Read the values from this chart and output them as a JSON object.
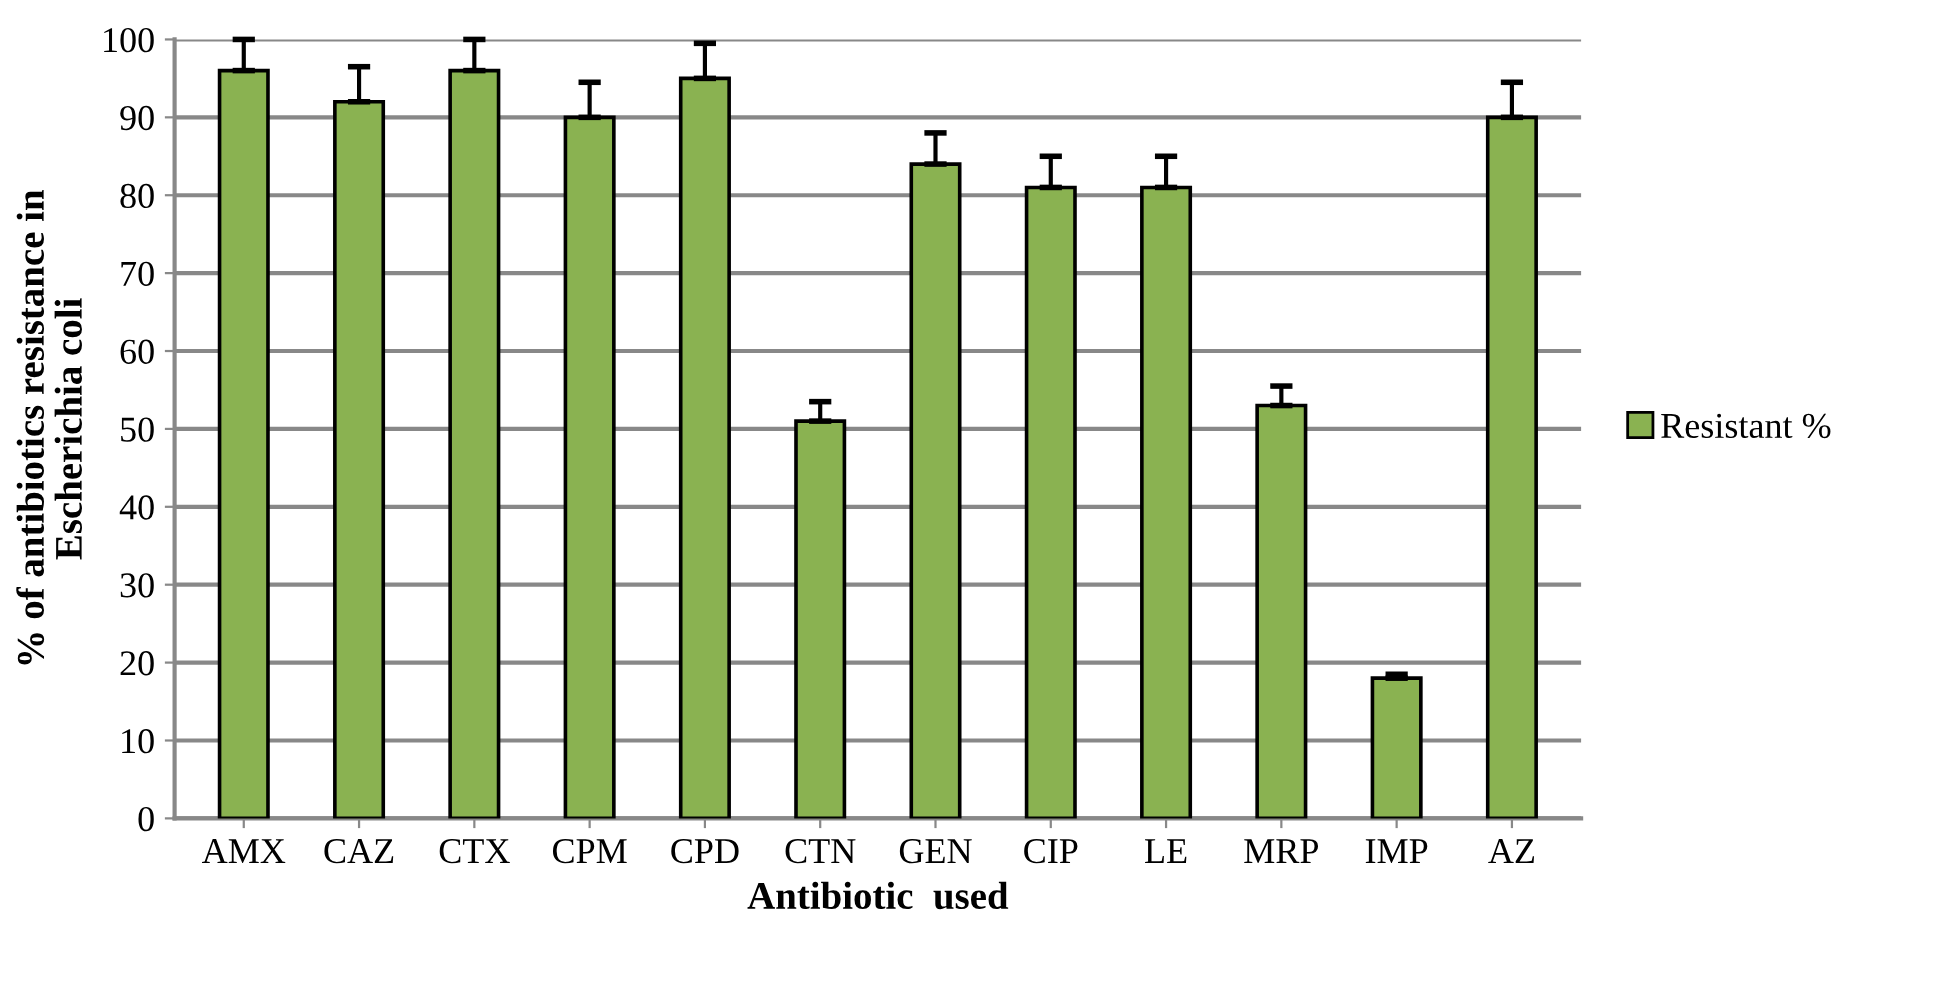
{
  "chart_data": {
    "type": "bar",
    "xlabel": "Antibiotic  used",
    "ylabel": "% of antibiotics resistance in\nEscherichia coli",
    "categories": [
      "AMX",
      "CAZ",
      "CTX",
      "CPM",
      "CPD",
      "CTN",
      "GEN",
      "CIP",
      "LE",
      "MRP",
      "IMP",
      "AZ"
    ],
    "series": [
      {
        "name": "Resistant %",
        "color": "#8ab251",
        "values": [
          96,
          92,
          96,
          90,
          95,
          51,
          84,
          81,
          81,
          53,
          18,
          90
        ],
        "errors": [
          [
            96,
            100
          ],
          [
            92,
            96.5
          ],
          [
            96,
            100
          ],
          [
            90,
            94.5
          ],
          [
            95,
            99.5
          ],
          [
            51,
            53.5
          ],
          [
            84,
            88
          ],
          [
            81,
            85
          ],
          [
            81,
            85
          ],
          [
            53,
            55.5
          ],
          [
            18,
            18.5
          ],
          [
            90,
            94.5
          ]
        ]
      }
    ],
    "ylim": [
      0,
      100
    ],
    "yticks": [
      0,
      10,
      20,
      30,
      40,
      50,
      60,
      70,
      80,
      90,
      100
    ],
    "grid": "y",
    "legend": "right"
  }
}
